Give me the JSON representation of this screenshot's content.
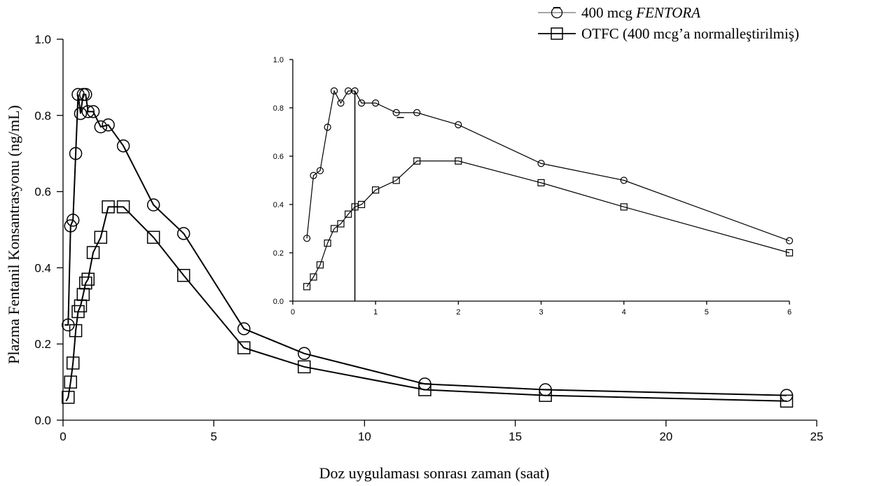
{
  "chart_data": [
    {
      "type": "line",
      "title": "",
      "xlabel": "Doz uygulaması sonrası zaman (saat)",
      "ylabel": "Plazma Fentanil Konsantrasyonu (ng/mL)",
      "xlim": [
        0,
        25
      ],
      "ylim": [
        0,
        1.0
      ],
      "x_ticks": [
        "0",
        "5",
        "10",
        "15",
        "20",
        "25"
      ],
      "y_ticks": [
        "0.0",
        "0.2",
        "0.4",
        "0.6",
        "0.8",
        "1.0"
      ],
      "grid": false,
      "legend_position": "top-right",
      "series": [
        {
          "name": "400 mcg FENTORA",
          "legend_prefix": "400 mcg ",
          "legend_italic": "FENTORA",
          "marker": "circle",
          "x": [
            0.17,
            0.25,
            0.33,
            0.42,
            0.5,
            0.58,
            0.67,
            0.75,
            0.83,
            1.0,
            1.25,
            1.5,
            2,
            3,
            4,
            6,
            8,
            12,
            16,
            24
          ],
          "y": [
            0.25,
            0.51,
            0.525,
            0.7,
            0.855,
            0.805,
            0.855,
            0.855,
            0.81,
            0.81,
            0.77,
            0.775,
            0.72,
            0.565,
            0.49,
            0.24,
            0.175,
            0.095,
            0.08,
            0.065
          ]
        },
        {
          "name": "OTFC (400 mcg’a normalleştirilmiş)",
          "legend_prefix": "OTFC (400 mcg’a normalleştirilmiş)",
          "legend_italic": "",
          "marker": "square",
          "x": [
            0.17,
            0.25,
            0.33,
            0.42,
            0.5,
            0.58,
            0.67,
            0.75,
            0.83,
            1.0,
            1.25,
            1.5,
            2,
            3,
            4,
            6,
            8,
            12,
            16,
            24
          ],
          "y": [
            0.06,
            0.1,
            0.15,
            0.235,
            0.285,
            0.3,
            0.33,
            0.36,
            0.37,
            0.44,
            0.48,
            0.56,
            0.56,
            0.48,
            0.38,
            0.19,
            0.14,
            0.08,
            0.065,
            0.05
          ]
        }
      ]
    },
    {
      "type": "line",
      "title": "",
      "xlabel": "",
      "ylabel": "",
      "xlim": [
        0,
        6
      ],
      "ylim": [
        0,
        1.0
      ],
      "x_ticks": [
        "0",
        "1",
        "2",
        "3",
        "4",
        "5",
        "6"
      ],
      "y_ticks": [
        "0.0",
        "0.2",
        "0.4",
        "0.6",
        "0.8",
        "1.0"
      ],
      "grid": false,
      "vertical_line_x": 0.75,
      "series": [
        {
          "name": "400 mcg FENTORA",
          "marker": "circle",
          "x": [
            0.17,
            0.25,
            0.33,
            0.42,
            0.5,
            0.58,
            0.67,
            0.75,
            0.83,
            1.0,
            1.25,
            1.5,
            2,
            3,
            4,
            6
          ],
          "y": [
            0.26,
            0.52,
            0.54,
            0.72,
            0.87,
            0.82,
            0.87,
            0.87,
            0.82,
            0.82,
            0.78,
            0.78,
            0.73,
            0.57,
            0.5,
            0.25
          ],
          "isolated_mark": {
            "x": 1.3,
            "y": 0.76
          }
        },
        {
          "name": "OTFC (400 mcg’a normalleştirilmiş)",
          "marker": "square",
          "x": [
            0.17,
            0.25,
            0.33,
            0.42,
            0.5,
            0.58,
            0.67,
            0.75,
            0.83,
            1.0,
            1.25,
            1.5,
            2,
            3,
            4,
            6
          ],
          "y": [
            0.06,
            0.1,
            0.15,
            0.24,
            0.3,
            0.32,
            0.36,
            0.39,
            0.4,
            0.46,
            0.5,
            0.58,
            0.58,
            0.49,
            0.39,
            0.2
          ]
        }
      ]
    }
  ]
}
